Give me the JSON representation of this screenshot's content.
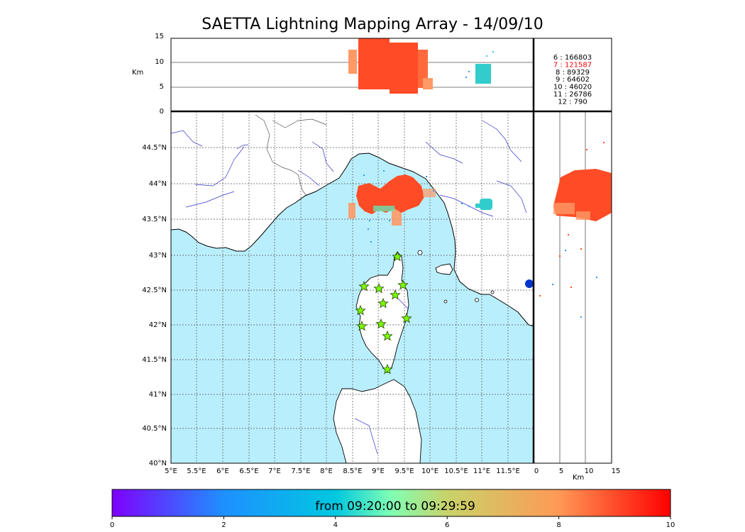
{
  "title": "SAETTA Lightning Mapping Array - 14/09/10",
  "alt_axis_label": "Km",
  "x_km_label": "Km",
  "colorbar": {
    "label": "from 09:20:00 to 09:29:59",
    "range": [
      0,
      10
    ],
    "ticks": [
      "0",
      "2",
      "4",
      "6",
      "8",
      "10"
    ]
  },
  "alt_ticks": [
    "15",
    "10",
    "5",
    "0"
  ],
  "km_ticks": [
    "0",
    "5",
    "10",
    "15"
  ],
  "lat_ticks": [
    "44.5°N",
    "44°N",
    "43.5°N",
    "43°N",
    "42.5°N",
    "42°N",
    "41.5°N",
    "41°N",
    "40.5°N",
    "40°N"
  ],
  "lon_ticks": [
    "5°E",
    "5.5°E",
    "6°E",
    "6.5°E",
    "7°E",
    "7.5°E",
    "8°E",
    "8.5°E",
    "9°E",
    "9.5°E",
    "10°E",
    "10.5°E",
    "11°E",
    "11.5°E"
  ],
  "station_counts": [
    {
      "label": "6  :   166803",
      "highlight": false
    },
    {
      "label": "7  :   121587",
      "highlight": true
    },
    {
      "label": "8  :     89329",
      "highlight": false
    },
    {
      "label": "9  :     64602",
      "highlight": false
    },
    {
      "label": "10  :     46020",
      "highlight": false
    },
    {
      "label": "11  :     26786",
      "highlight": false
    },
    {
      "label": "12  :       790",
      "highlight": false
    }
  ],
  "colors": {
    "sea": "#b9effc",
    "river": "#3333cc",
    "coast": "#000000",
    "station": "#7cfc00",
    "highlight": "#ff0000"
  }
}
